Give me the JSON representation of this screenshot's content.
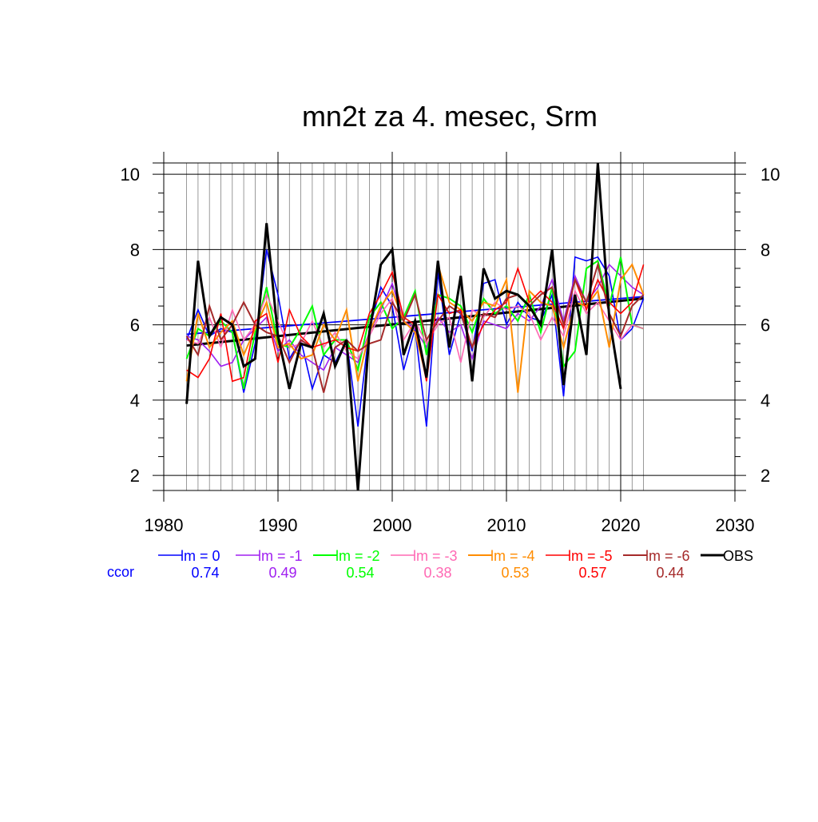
{
  "chart_data": {
    "type": "line",
    "title": "mn2t za 4. mesec, Srm",
    "xlabel": "",
    "ylabel": "",
    "xlim": [
      1980,
      2030
    ],
    "ylim": [
      1.6,
      10.3
    ],
    "x_ticks": [
      1980,
      1990,
      2000,
      2010,
      2020,
      2030
    ],
    "y_ticks": [
      2,
      4,
      6,
      8,
      10
    ],
    "x": [
      1982,
      1983,
      1984,
      1985,
      1986,
      1987,
      1988,
      1989,
      1990,
      1991,
      1992,
      1993,
      1994,
      1995,
      1996,
      1997,
      1998,
      1999,
      2000,
      2001,
      2002,
      2003,
      2004,
      2005,
      2006,
      2007,
      2008,
      2009,
      2010,
      2011,
      2012,
      2013,
      2014,
      2015,
      2016,
      2017,
      2018,
      2019,
      2020,
      2021,
      2022
    ],
    "series": [
      {
        "name": "lm = 0",
        "color": "#0000ff",
        "width": 1.6,
        "ccor": "0.74",
        "values": [
          5.6,
          6.4,
          5.7,
          5.9,
          5.8,
          4.2,
          5.5,
          8.0,
          6.8,
          5.1,
          5.6,
          4.3,
          5.2,
          5.0,
          5.6,
          3.3,
          5.9,
          7.0,
          6.5,
          4.8,
          5.9,
          3.3,
          7.4,
          5.2,
          6.3,
          5.3,
          7.1,
          7.2,
          6.0,
          6.6,
          6.2,
          6.1,
          6.8,
          4.1,
          7.8,
          7.7,
          7.8,
          7.3,
          5.6,
          5.9,
          6.7
        ]
      },
      {
        "name": "lm = -1",
        "color": "#a020f0",
        "width": 1.6,
        "ccor": "0.49",
        "values": [
          5.7,
          5.6,
          5.3,
          4.9,
          5.0,
          5.6,
          5.9,
          6.2,
          5.3,
          5.6,
          5.2,
          5.0,
          4.8,
          5.4,
          5.2,
          5.0,
          5.8,
          6.4,
          7.1,
          6.1,
          5.9,
          5.4,
          6.2,
          5.8,
          6.0,
          5.1,
          6.1,
          6.0,
          5.9,
          6.3,
          6.1,
          6.5,
          7.2,
          6.1,
          7.3,
          6.6,
          7.0,
          7.6,
          7.3,
          7.0,
          6.8
        ]
      },
      {
        "name": "lm = -2",
        "color": "#00ff00",
        "width": 2.0,
        "ccor": "0.54",
        "values": [
          5.1,
          5.9,
          5.7,
          6.1,
          5.8,
          4.3,
          5.8,
          7.0,
          5.5,
          5.4,
          5.9,
          6.5,
          5.2,
          5.6,
          5.6,
          4.8,
          6.2,
          6.6,
          5.9,
          6.2,
          6.9,
          5.2,
          6.8,
          6.7,
          6.5,
          5.8,
          6.7,
          6.3,
          6.5,
          6.1,
          6.8,
          5.8,
          7.0,
          4.9,
          5.3,
          7.5,
          7.7,
          6.5,
          7.8,
          6.0,
          5.9
        ]
      },
      {
        "name": "lm = -3",
        "color": "#ff69b4",
        "width": 1.6,
        "ccor": "0.38",
        "values": [
          5.6,
          5.5,
          6.2,
          5.4,
          6.4,
          5.6,
          6.0,
          6.8,
          6.1,
          5.4,
          5.5,
          6.1,
          5.4,
          5.8,
          5.3,
          5.1,
          5.7,
          6.3,
          6.7,
          5.6,
          6.1,
          5.5,
          6.0,
          6.2,
          5.0,
          6.4,
          6.2,
          6.6,
          6.4,
          6.5,
          6.3,
          5.6,
          6.2,
          5.7,
          6.9,
          6.3,
          6.6,
          6.1,
          5.6,
          6.0,
          5.9
        ]
      },
      {
        "name": "lm = -4",
        "color": "#ff8c00",
        "width": 2.0,
        "ccor": "0.53",
        "values": [
          4.5,
          6.3,
          5.4,
          5.8,
          6.1,
          5.2,
          5.9,
          6.6,
          5.4,
          5.5,
          5.1,
          5.2,
          6.0,
          5.6,
          6.4,
          4.5,
          5.8,
          6.5,
          6.9,
          6.1,
          5.8,
          4.6,
          7.6,
          6.6,
          6.4,
          6.1,
          6.6,
          6.5,
          7.2,
          4.2,
          6.9,
          6.6,
          6.5,
          5.4,
          6.6,
          6.5,
          6.9,
          5.4,
          7.2,
          7.6,
          6.8
        ]
      },
      {
        "name": "lm = -5",
        "color": "#ff0000",
        "width": 1.6,
        "ccor": "0.57",
        "values": [
          4.8,
          4.6,
          5.1,
          6.3,
          4.5,
          4.6,
          6.1,
          6.3,
          5.0,
          6.4,
          5.7,
          5.4,
          5.5,
          5.6,
          5.4,
          5.3,
          6.3,
          6.8,
          7.4,
          6.2,
          6.0,
          4.5,
          6.8,
          6.3,
          6.4,
          5.4,
          6.0,
          6.4,
          6.6,
          7.5,
          6.6,
          6.9,
          6.6,
          5.9,
          7.2,
          6.4,
          7.2,
          6.6,
          6.3,
          6.6,
          7.6
        ]
      },
      {
        "name": "lm = -6",
        "color": "#a52a2a",
        "width": 2.0,
        "ccor": "0.44",
        "values": [
          5.7,
          5.2,
          6.5,
          5.6,
          6.0,
          6.6,
          6.0,
          5.8,
          5.7,
          5.0,
          5.6,
          5.4,
          4.2,
          5.4,
          5.6,
          5.3,
          5.5,
          5.6,
          6.6,
          6.1,
          6.8,
          5.6,
          6.1,
          6.5,
          6.3,
          5.4,
          6.3,
          6.2,
          6.7,
          6.8,
          6.5,
          6.8,
          7.0,
          6.0,
          7.2,
          6.6,
          7.6,
          6.3,
          5.7,
          6.5,
          6.8
        ]
      },
      {
        "name": "OBS",
        "color": "#000000",
        "width": 3.0,
        "ccor": "",
        "values": [
          3.9,
          7.7,
          5.7,
          6.2,
          6.0,
          4.9,
          5.1,
          8.7,
          5.7,
          4.3,
          5.5,
          5.4,
          6.3,
          4.9,
          5.6,
          1.6,
          5.8,
          7.6,
          8.0,
          5.2,
          6.1,
          4.6,
          7.7,
          5.4,
          7.3,
          4.5,
          7.5,
          6.7,
          6.9,
          6.8,
          6.5,
          6.0,
          8.0,
          4.4,
          6.8,
          5.2,
          10.3,
          6.2,
          4.3,
          null,
          null
        ]
      }
    ],
    "trend_lines": [
      {
        "of": "lm = 0",
        "color": "#0000ff",
        "width": 1.8,
        "x": [
          1982,
          2022
        ],
        "y": [
          5.75,
          6.75
        ]
      },
      {
        "of": "OBS",
        "color": "#000000",
        "width": 3.0,
        "x": [
          1982,
          2022
        ],
        "y": [
          5.45,
          6.7
        ]
      }
    ],
    "ccor_label": "ccor",
    "ccor_label_color": "#0000ff",
    "legend_position": "below-plot"
  }
}
